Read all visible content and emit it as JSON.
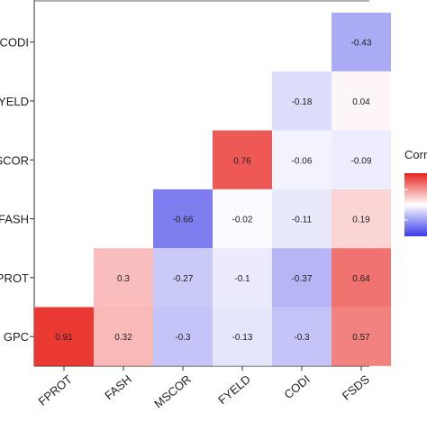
{
  "chart_data": {
    "type": "heatmap",
    "title": "",
    "x_categories": [
      "FPROT",
      "FASH",
      "MSCOR",
      "FYELD",
      "CODI",
      "FSDS"
    ],
    "y_categories": [
      "CODI",
      "FYELD",
      "MSCOR",
      "FASH",
      "FPROT",
      "GPC"
    ],
    "cells": [
      {
        "row": "CODI",
        "col": "FSDS",
        "value": -0.43,
        "label": "-0.43"
      },
      {
        "row": "FYELD",
        "col": "CODI",
        "value": -0.18,
        "label": "-0.18"
      },
      {
        "row": "FYELD",
        "col": "FSDS",
        "value": 0.04,
        "label": "0.04"
      },
      {
        "row": "MSCOR",
        "col": "FYELD",
        "value": 0.76,
        "label": "0.76"
      },
      {
        "row": "MSCOR",
        "col": "CODI",
        "value": -0.06,
        "label": "-0.06"
      },
      {
        "row": "MSCOR",
        "col": "FSDS",
        "value": -0.09,
        "label": "-0.09"
      },
      {
        "row": "FASH",
        "col": "MSCOR",
        "value": -0.66,
        "label": "-0.66"
      },
      {
        "row": "FASH",
        "col": "FYELD",
        "value": -0.02,
        "label": "-0.02"
      },
      {
        "row": "FASH",
        "col": "CODI",
        "value": -0.11,
        "label": "-0.11"
      },
      {
        "row": "FASH",
        "col": "FSDS",
        "value": 0.19,
        "label": "0.19"
      },
      {
        "row": "FPROT",
        "col": "FASH",
        "value": 0.3,
        "label": "0.3"
      },
      {
        "row": "FPROT",
        "col": "MSCOR",
        "value": -0.27,
        "label": "-0.27"
      },
      {
        "row": "FPROT",
        "col": "FYELD",
        "value": -0.1,
        "label": "-0.1"
      },
      {
        "row": "FPROT",
        "col": "CODI",
        "value": -0.37,
        "label": "-0.37"
      },
      {
        "row": "FPROT",
        "col": "FSDS",
        "value": 0.64,
        "label": "0.64"
      },
      {
        "row": "GPC",
        "col": "FPROT",
        "value": 0.91,
        "label": "0.91"
      },
      {
        "row": "GPC",
        "col": "FASH",
        "value": 0.32,
        "label": "0.32"
      },
      {
        "row": "GPC",
        "col": "MSCOR",
        "value": -0.3,
        "label": "-0.3"
      },
      {
        "row": "GPC",
        "col": "FYELD",
        "value": -0.13,
        "label": "-0.13"
      },
      {
        "row": "GPC",
        "col": "CODI",
        "value": -0.3,
        "label": "-0.3"
      },
      {
        "row": "GPC",
        "col": "FSDS",
        "value": 0.57,
        "label": "0.57"
      }
    ],
    "color_scale": {
      "low": "#3a3ae8",
      "mid": "#ffffff",
      "high": "#e8241f",
      "range": [
        -1,
        1
      ]
    },
    "legend": {
      "title": "Corr",
      "position": "right"
    }
  }
}
